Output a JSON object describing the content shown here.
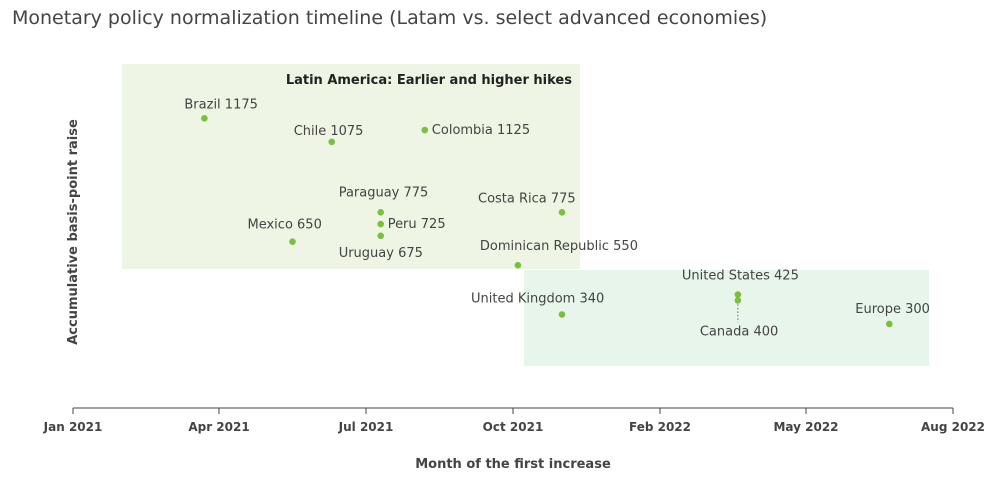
{
  "chart_data": {
    "type": "scatter",
    "title": "Monetary policy normalization timeline (Latam vs. select advanced economies)",
    "xlabel": "Month of the first increase",
    "ylabel": "Accumulative basis-point raise",
    "x_ticks": [
      "Jan 2021",
      "Apr 2021",
      "Jul 2021",
      "Oct 2021",
      "Feb 2022",
      "May 2022",
      "Aug 2022"
    ],
    "regions": [
      {
        "name": "latam",
        "label": "Latin America: Earlier and higher hikes",
        "color": "#eef5e4"
      },
      {
        "name": "advanced",
        "label": "",
        "color": "#e7f5ea"
      }
    ],
    "point_color": "#7cbf3f",
    "points": [
      {
        "country": "Brazil",
        "value": 1175,
        "month": 2.7,
        "label": "Brazil 1175"
      },
      {
        "country": "Chile",
        "value": 1075,
        "month": 5.3,
        "label": "Chile 1075"
      },
      {
        "country": "Colombia",
        "value": 1125,
        "month": 7.2,
        "label": "Colombia 1125"
      },
      {
        "country": "Paraguay",
        "value": 775,
        "month": 6.3,
        "label": "Paraguay 775"
      },
      {
        "country": "Peru",
        "value": 725,
        "month": 6.3,
        "label": "Peru 725"
      },
      {
        "country": "Uruguay",
        "value": 675,
        "month": 6.3,
        "label": "Uruguay 675"
      },
      {
        "country": "Mexico",
        "value": 650,
        "month": 4.5,
        "label": "Mexico 650"
      },
      {
        "country": "Costa Rica",
        "value": 775,
        "month": 10.0,
        "label": "Costa Rica 775"
      },
      {
        "country": "Dominican Republic",
        "value": 550,
        "month": 9.1,
        "label": "Dominican Republic 550"
      },
      {
        "country": "United Kingdom",
        "value": 340,
        "month": 10.0,
        "label": "United Kingdom 340"
      },
      {
        "country": "United States",
        "value": 425,
        "month": 13.6,
        "label": "United States 425"
      },
      {
        "country": "Canada",
        "value": 400,
        "month": 13.6,
        "label": "Canada 400"
      },
      {
        "country": "Europe",
        "value": 300,
        "month": 16.7,
        "label": "Europe 300"
      }
    ]
  }
}
